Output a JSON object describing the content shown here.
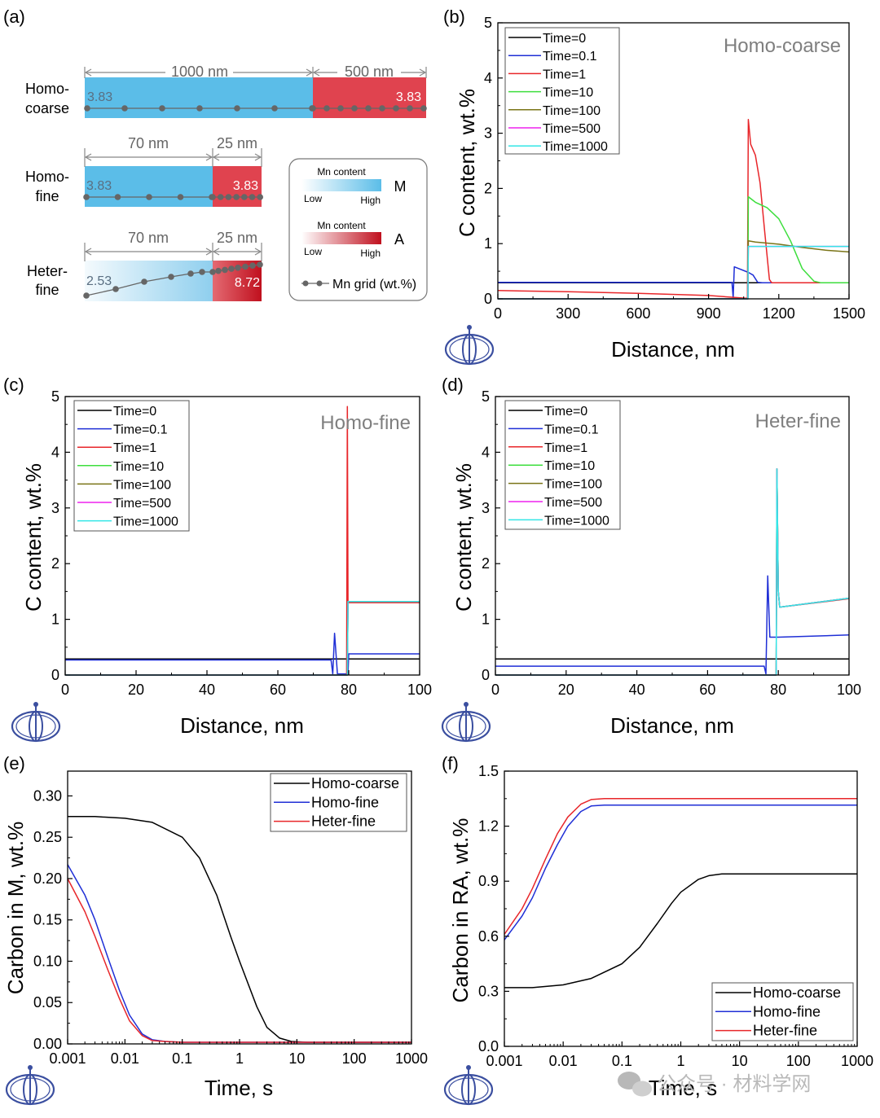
{
  "colors": {
    "M_blue": "#5bbde8",
    "A_red": "#e0434f",
    "A_dark": "#c0101e",
    "grid_gray": "#666666",
    "axis": "#000000",
    "logo": "#3b4fa0"
  },
  "series_colors": [
    "#000000",
    "#1f2fd6",
    "#e8262a",
    "#3dde3d",
    "#7a7417",
    "#ee22ee",
    "#33e6e6"
  ],
  "panel_a": {
    "label": "(a)",
    "rows": [
      {
        "name_line1": "Homo-",
        "name_line2": "coarse",
        "m_width_label": "1000 nm",
        "a_width_label": "500 nm",
        "m_value": "3.83",
        "a_value": "3.83"
      },
      {
        "name_line1": "Homo-",
        "name_line2": "fine",
        "m_width_label": "70 nm",
        "a_width_label": "25 nm",
        "m_value": "3.83",
        "a_value": "3.83"
      },
      {
        "name_line1": "Heter-",
        "name_line2": "fine",
        "m_width_label": "70 nm",
        "a_width_label": "25 nm",
        "m_value": "2.53",
        "a_value": "8.72"
      }
    ],
    "legend": {
      "m_title": "Mn content",
      "m_low": "Low",
      "m_high": "High",
      "m_letter": "M",
      "a_title": "Mn content",
      "a_low": "Low",
      "a_high": "High",
      "a_letter": "A",
      "grid_label": "Mn grid (wt.%)"
    }
  },
  "watermark": "公众号 · 材料学网",
  "chart_data": [
    {
      "panel": "(b)",
      "type": "line",
      "annotation": "Homo-coarse",
      "xlabel": "Distance, nm",
      "ylabel": "C content, wt.%",
      "xlim": [
        0,
        1500
      ],
      "ylim": [
        0,
        5
      ],
      "xticks": [
        0,
        300,
        600,
        900,
        1200,
        1500
      ],
      "yticks": [
        0,
        1,
        2,
        3,
        4,
        5
      ],
      "legend_position": "top-left",
      "series": [
        {
          "name": "Time=0",
          "x": [
            0,
            1500
          ],
          "y": [
            0.29,
            0.29
          ]
        },
        {
          "name": "Time=0.1",
          "x": [
            0,
            1000,
            1005,
            1010,
            1070,
            1090,
            1110,
            1130,
            1500
          ],
          "y": [
            0.3,
            0.3,
            0.02,
            0.58,
            0.48,
            0.43,
            0.3,
            0.29,
            0.29
          ]
        },
        {
          "name": "Time=1",
          "x": [
            0,
            300,
            600,
            900,
            1060,
            1066,
            1070,
            1080,
            1100,
            1120,
            1140,
            1160,
            1170,
            1500
          ],
          "y": [
            0.15,
            0.13,
            0.1,
            0.06,
            0.01,
            0.01,
            3.25,
            2.8,
            2.6,
            2.1,
            1.2,
            0.35,
            0.29,
            0.29
          ]
        },
        {
          "name": "Time=10",
          "x": [
            0,
            1066,
            1068,
            1070,
            1100,
            1150,
            1200,
            1250,
            1300,
            1350,
            1380,
            1500
          ],
          "y": [
            0.0,
            0.0,
            0.0,
            1.85,
            1.75,
            1.65,
            1.45,
            1.05,
            0.55,
            0.32,
            0.29,
            0.29
          ]
        },
        {
          "name": "Time=100",
          "x": [
            0,
            1066,
            1068,
            1070,
            1100,
            1200,
            1300,
            1400,
            1500
          ],
          "y": [
            0.0,
            0.0,
            0.0,
            1.05,
            1.03,
            0.99,
            0.93,
            0.88,
            0.85
          ]
        },
        {
          "name": "Time=500",
          "x": [
            0,
            1066,
            1068,
            1070,
            1500
          ],
          "y": [
            0.0,
            0.0,
            0.0,
            0.95,
            0.95
          ]
        },
        {
          "name": "Time=1000",
          "x": [
            0,
            1066,
            1068,
            1070,
            1500
          ],
          "y": [
            0.0,
            0.0,
            0.0,
            0.95,
            0.95
          ]
        }
      ]
    },
    {
      "panel": "(c)",
      "type": "line",
      "annotation": "Homo-fine",
      "xlabel": "Distance, nm",
      "ylabel": "C content, wt.%",
      "xlim": [
        0,
        100
      ],
      "ylim": [
        0,
        5
      ],
      "xticks": [
        0,
        20,
        40,
        60,
        80,
        100
      ],
      "yticks": [
        0,
        1,
        2,
        3,
        4,
        5
      ],
      "legend_position": "top-left",
      "series": [
        {
          "name": "Time=0",
          "x": [
            0,
            100
          ],
          "y": [
            0.29,
            0.29
          ]
        },
        {
          "name": "Time=0.1",
          "x": [
            0,
            75,
            75.5,
            76,
            76.8,
            79.5,
            79.8,
            80,
            100
          ],
          "y": [
            0.27,
            0.27,
            0.02,
            0.75,
            0.02,
            0.02,
            0.02,
            0.38,
            0.38
          ]
        },
        {
          "name": "Time=1",
          "x": [
            0,
            79.4,
            79.6,
            79.8,
            80.2,
            100
          ],
          "y": [
            0.0,
            0.0,
            4.82,
            1.3,
            1.3,
            1.3
          ]
        },
        {
          "name": "Time=10",
          "x": [
            0,
            79.6,
            79.8,
            100
          ],
          "y": [
            0.0,
            0.0,
            1.32,
            1.32
          ]
        },
        {
          "name": "Time=100",
          "x": [
            0,
            79.6,
            79.8,
            100
          ],
          "y": [
            0.0,
            0.0,
            1.32,
            1.32
          ]
        },
        {
          "name": "Time=500",
          "x": [
            0,
            79.6,
            79.8,
            100
          ],
          "y": [
            0.0,
            0.0,
            1.32,
            1.32
          ]
        },
        {
          "name": "Time=1000",
          "x": [
            0,
            79.6,
            79.8,
            100
          ],
          "y": [
            0.0,
            0.0,
            1.32,
            1.32
          ]
        }
      ]
    },
    {
      "panel": "(d)",
      "type": "line",
      "annotation": "Heter-fine",
      "xlabel": "Distance, nm",
      "ylabel": "C content, wt.%",
      "xlim": [
        0,
        100
      ],
      "ylim": [
        0,
        5
      ],
      "xticks": [
        0,
        20,
        40,
        60,
        80,
        100
      ],
      "yticks": [
        0,
        1,
        2,
        3,
        4,
        5
      ],
      "legend_position": "top-left",
      "series": [
        {
          "name": "Time=0",
          "x": [
            0,
            100
          ],
          "y": [
            0.29,
            0.29
          ]
        },
        {
          "name": "Time=0.1",
          "x": [
            0,
            76,
            76.5,
            77,
            77.6,
            80,
            100
          ],
          "y": [
            0.16,
            0.16,
            0.02,
            1.78,
            0.68,
            0.68,
            0.72
          ]
        },
        {
          "name": "Time=1",
          "x": [
            0,
            79.4,
            79.6,
            80,
            80.4,
            100
          ],
          "y": [
            0.0,
            0.0,
            3.7,
            1.5,
            1.22,
            1.37
          ]
        },
        {
          "name": "Time=10",
          "x": [
            0,
            79.4,
            79.6,
            80,
            80.4,
            100
          ],
          "y": [
            0.0,
            0.0,
            3.7,
            1.5,
            1.22,
            1.38
          ]
        },
        {
          "name": "Time=100",
          "x": [
            0,
            79.4,
            79.6,
            80,
            80.4,
            100
          ],
          "y": [
            0.0,
            0.0,
            3.7,
            1.5,
            1.22,
            1.38
          ]
        },
        {
          "name": "Time=500",
          "x": [
            0,
            79.4,
            79.6,
            80,
            80.4,
            100
          ],
          "y": [
            0.0,
            0.0,
            3.7,
            1.5,
            1.22,
            1.38
          ]
        },
        {
          "name": "Time=1000",
          "x": [
            0,
            79.4,
            79.6,
            80,
            80.4,
            100
          ],
          "y": [
            0.0,
            0.0,
            3.7,
            1.5,
            1.22,
            1.38
          ]
        }
      ]
    },
    {
      "panel": "(e)",
      "type": "line",
      "xlabel": "Time, s",
      "ylabel": "Carbon in M, wt.%",
      "xscale": "log",
      "xlim": [
        0.001,
        1000
      ],
      "ylim": [
        0,
        0.33
      ],
      "xticks": [
        0.001,
        0.01,
        0.1,
        1,
        10,
        100,
        1000
      ],
      "xtick_labels": [
        "0.001",
        "0.01",
        "0.1",
        "1",
        "10",
        "100",
        "1000"
      ],
      "yticks": [
        0,
        0.05,
        0.1,
        0.15,
        0.2,
        0.25,
        0.3
      ],
      "ytick_labels": [
        "0.00",
        "0.05",
        "0.10",
        "0.15",
        "0.20",
        "0.25",
        "0.30"
      ],
      "legend_position": "top-right",
      "series": [
        {
          "name": "Homo-coarse",
          "color_index": 0,
          "x": [
            0.001,
            0.003,
            0.01,
            0.03,
            0.1,
            0.2,
            0.4,
            0.7,
            1,
            2,
            3,
            5,
            8,
            15,
            50,
            1000
          ],
          "y": [
            0.275,
            0.275,
            0.273,
            0.268,
            0.25,
            0.225,
            0.18,
            0.13,
            0.1,
            0.045,
            0.02,
            0.007,
            0.003,
            0.002,
            0.002,
            0.002
          ]
        },
        {
          "name": "Homo-fine",
          "color_index": 1,
          "x": [
            0.001,
            0.002,
            0.003,
            0.005,
            0.008,
            0.012,
            0.02,
            0.03,
            0.05,
            0.1,
            1,
            1000
          ],
          "y": [
            0.217,
            0.18,
            0.15,
            0.105,
            0.065,
            0.035,
            0.012,
            0.005,
            0.003,
            0.002,
            0.002,
            0.002
          ]
        },
        {
          "name": "Heter-fine",
          "color_index": 2,
          "x": [
            0.001,
            0.002,
            0.003,
            0.005,
            0.008,
            0.012,
            0.02,
            0.03,
            0.05,
            0.1,
            1,
            1000
          ],
          "y": [
            0.2,
            0.16,
            0.13,
            0.09,
            0.055,
            0.028,
            0.01,
            0.004,
            0.003,
            0.002,
            0.002,
            0.002
          ]
        }
      ]
    },
    {
      "panel": "(f)",
      "type": "line",
      "xlabel": "Time, s",
      "ylabel": "Carbon in RA, wt.%",
      "xscale": "log",
      "xlim": [
        0.001,
        1000
      ],
      "ylim": [
        0,
        1.5
      ],
      "xticks": [
        0.001,
        0.01,
        0.1,
        1,
        10,
        100,
        1000
      ],
      "xtick_labels": [
        "0.001",
        "0.01",
        "0.1",
        "1",
        "10",
        "100",
        "1000"
      ],
      "yticks": [
        0,
        0.3,
        0.6,
        0.9,
        1.2,
        1.5
      ],
      "ytick_labels": [
        "0.0",
        "0.3",
        "0.6",
        "0.9",
        "1.2",
        "1.5"
      ],
      "legend_position": "bottom-right",
      "series": [
        {
          "name": "Homo-coarse",
          "color_index": 0,
          "x": [
            0.001,
            0.003,
            0.01,
            0.03,
            0.1,
            0.2,
            0.4,
            0.7,
            1,
            2,
            3,
            5,
            10,
            100,
            1000
          ],
          "y": [
            0.32,
            0.32,
            0.335,
            0.37,
            0.45,
            0.54,
            0.67,
            0.78,
            0.84,
            0.91,
            0.93,
            0.94,
            0.94,
            0.94,
            0.94
          ]
        },
        {
          "name": "Homo-fine",
          "color_index": 1,
          "x": [
            0.001,
            0.002,
            0.003,
            0.005,
            0.008,
            0.012,
            0.02,
            0.03,
            0.05,
            0.1,
            1,
            1000
          ],
          "y": [
            0.58,
            0.71,
            0.81,
            0.97,
            1.1,
            1.2,
            1.28,
            1.31,
            1.315,
            1.315,
            1.315,
            1.315
          ]
        },
        {
          "name": "Heter-fine",
          "color_index": 2,
          "x": [
            0.001,
            0.002,
            0.003,
            0.005,
            0.008,
            0.012,
            0.02,
            0.03,
            0.05,
            0.1,
            1,
            1000
          ],
          "y": [
            0.61,
            0.75,
            0.86,
            1.02,
            1.16,
            1.25,
            1.32,
            1.345,
            1.35,
            1.35,
            1.35,
            1.35
          ]
        }
      ]
    }
  ]
}
